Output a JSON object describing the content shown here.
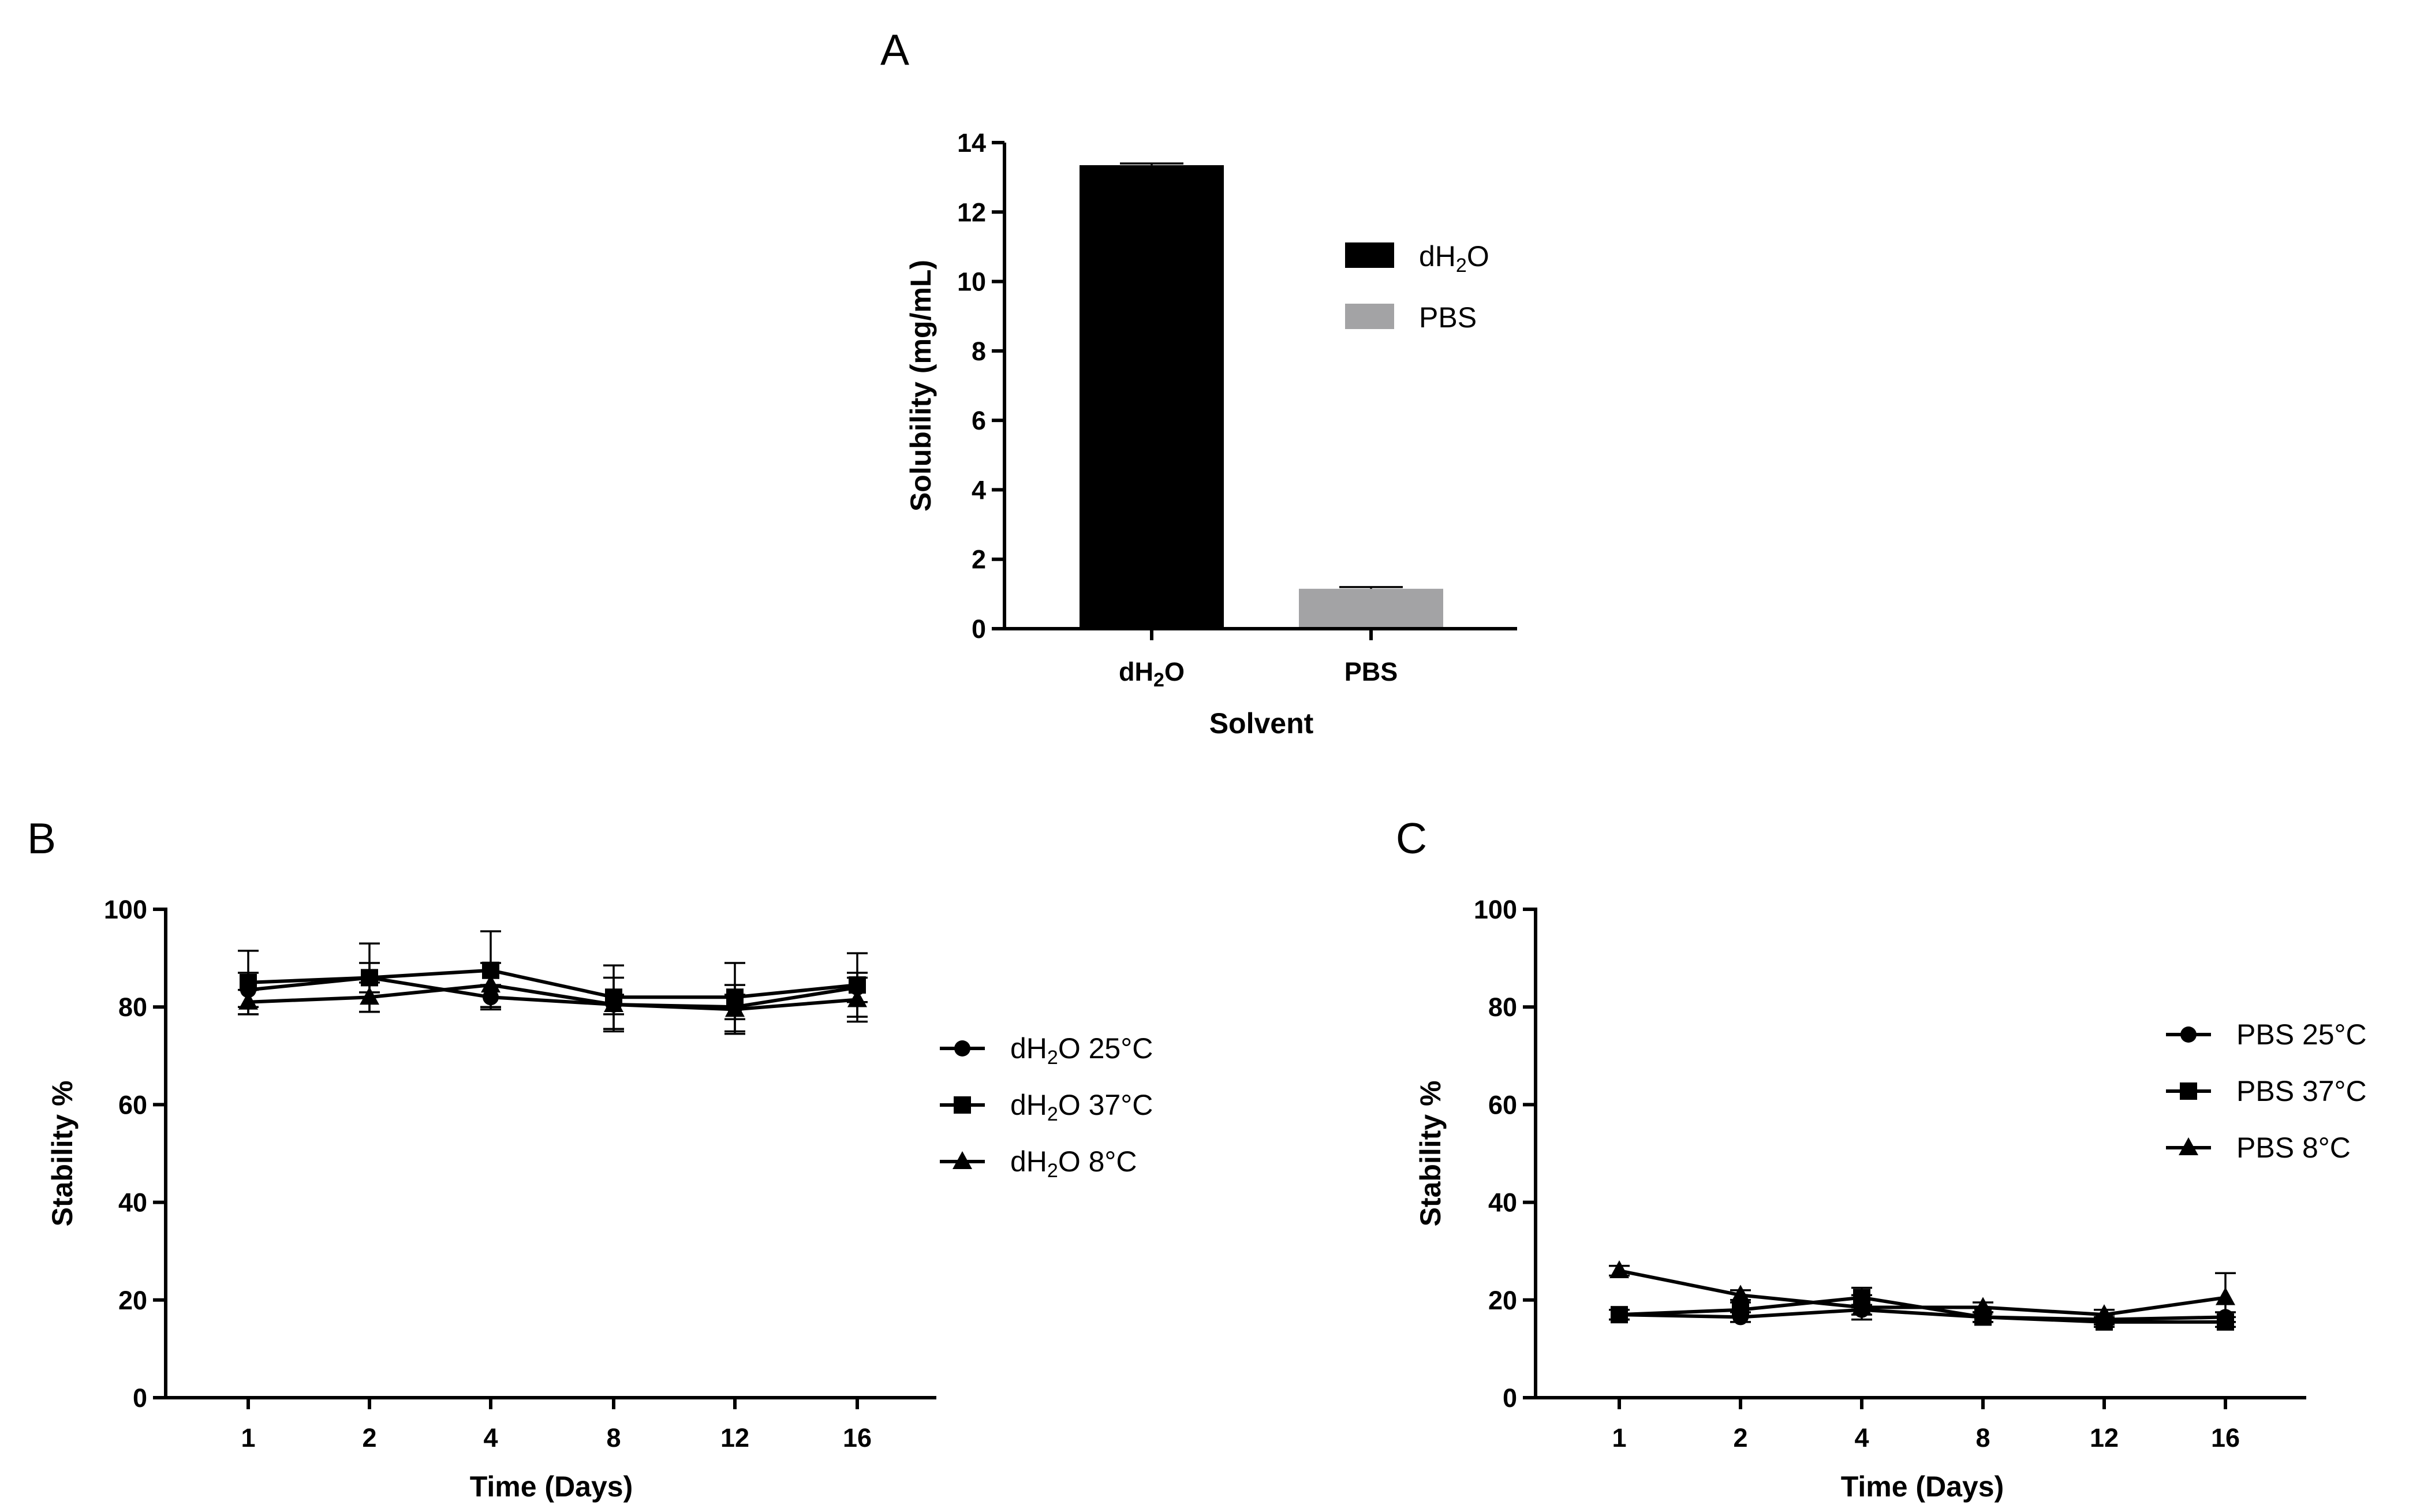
{
  "chart_data": [
    {
      "panel": "A",
      "type": "bar",
      "title": "",
      "xlabel": "Solvent",
      "ylabel": "Solubility (mg/mL)",
      "ylim": [
        0,
        14
      ],
      "yticks": [
        "0",
        "2",
        "4",
        "6",
        "8",
        "10",
        "12",
        "14"
      ],
      "categories": [
        "dH2O",
        "PBS"
      ],
      "values": [
        13.35,
        1.15
      ],
      "errors": [
        0.05,
        0.05
      ],
      "colors": [
        "#000000",
        "#a3a3a5"
      ],
      "legend": [
        "dH2O",
        "PBS"
      ],
      "legend_position": "right"
    },
    {
      "panel": "B",
      "type": "line",
      "xlabel": "Time (Days)",
      "ylabel": "Stability %",
      "ylim": [
        0,
        100
      ],
      "yticks": [
        "0",
        "20",
        "40",
        "60",
        "80",
        "100"
      ],
      "categories": [
        "1",
        "2",
        "4",
        "8",
        "12",
        "16"
      ],
      "series": [
        {
          "name": "dH2O 25°C",
          "marker": "circle",
          "values": [
            83.5,
            86.0,
            82.0,
            80.5,
            80.0,
            84.0
          ],
          "errors": [
            3.5,
            3.0,
            2.5,
            2.0,
            2.5,
            3.0
          ]
        },
        {
          "name": "dH2O 37°C",
          "marker": "square",
          "values": [
            85.0,
            86.0,
            87.5,
            82.0,
            82.0,
            84.5
          ],
          "errors": [
            6.5,
            7.0,
            8.0,
            6.5,
            7.0,
            6.5
          ]
        },
        {
          "name": "dH2O 8°C",
          "marker": "triangle",
          "values": [
            81.0,
            82.0,
            84.5,
            80.5,
            79.5,
            81.5
          ],
          "errors": [
            2.5,
            3.0,
            4.5,
            5.5,
            5.0,
            4.5
          ]
        }
      ],
      "legend_position": "right"
    },
    {
      "panel": "C",
      "type": "line",
      "xlabel": "Time (Days)",
      "ylabel": "Stability %",
      "ylim": [
        0,
        100
      ],
      "yticks": [
        "0",
        "20",
        "40",
        "60",
        "80",
        "100"
      ],
      "categories": [
        "1",
        "2",
        "4",
        "8",
        "12",
        "16"
      ],
      "series": [
        {
          "name": "PBS 25°C",
          "marker": "circle",
          "values": [
            17.0,
            16.5,
            18.0,
            16.5,
            16.0,
            16.5
          ],
          "errors": [
            1.0,
            1.0,
            1.0,
            1.0,
            1.0,
            1.0
          ]
        },
        {
          "name": "PBS 37°C",
          "marker": "square",
          "values": [
            17.0,
            18.0,
            20.5,
            16.5,
            15.5,
            15.5
          ],
          "errors": [
            1.0,
            1.5,
            2.0,
            1.0,
            1.0,
            1.0
          ]
        },
        {
          "name": "PBS 8°C",
          "marker": "triangle",
          "values": [
            26.0,
            21.0,
            18.5,
            18.5,
            17.0,
            20.5
          ],
          "errors": [
            1.0,
            1.0,
            2.5,
            1.0,
            1.0,
            5.0
          ]
        }
      ],
      "legend_position": "top-right"
    }
  ]
}
